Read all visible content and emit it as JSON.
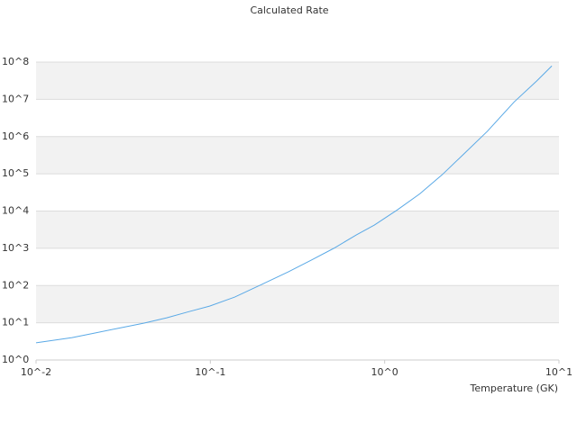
{
  "chart_data": {
    "type": "line",
    "title": "Calculated Rate",
    "x_label": "Temperature (GK)",
    "x_scale": "log",
    "y_scale": "log",
    "grid": true,
    "band_color": "#f2f2f2",
    "xlim": [
      0.01,
      10
    ],
    "ylim": [
      1,
      100000000
    ],
    "xticks": [
      {
        "value": 0.01,
        "label": "10^-2"
      },
      {
        "value": 0.1,
        "label": "10^-1"
      },
      {
        "value": 1,
        "label": "10^0"
      },
      {
        "value": 10,
        "label": "10^1"
      }
    ],
    "yticks": [
      {
        "value": 1,
        "label": "10^0"
      },
      {
        "value": 10,
        "label": "10^1"
      },
      {
        "value": 100,
        "label": "10^2"
      },
      {
        "value": 1000,
        "label": "10^3"
      },
      {
        "value": 10000,
        "label": "10^4"
      },
      {
        "value": 100000,
        "label": "10^5"
      },
      {
        "value": 1000000,
        "label": "10^6"
      },
      {
        "value": 10000000,
        "label": "10^7"
      },
      {
        "value": 100000000,
        "label": "10^8"
      }
    ],
    "x": [
      0.01,
      0.0127,
      0.0161,
      0.0204,
      0.0292,
      0.0417,
      0.0562,
      0.0756,
      0.099,
      0.138,
      0.197,
      0.28,
      0.379,
      0.511,
      0.689,
      0.873,
      1.18,
      1.59,
      2.14,
      2.88,
      3.88,
      5.53,
      7.45,
      9.1
    ],
    "series": [
      {
        "color": "#5aa9e6",
        "values": [
          2.9,
          3.4,
          4.0,
          5.0,
          7.0,
          9.8,
          13.6,
          20,
          28,
          49,
          107,
          233,
          480,
          1000,
          2300,
          4200,
          10700,
          29000,
          95000,
          360000,
          1380000,
          8500000,
          31000000,
          79000000
        ]
      }
    ]
  }
}
